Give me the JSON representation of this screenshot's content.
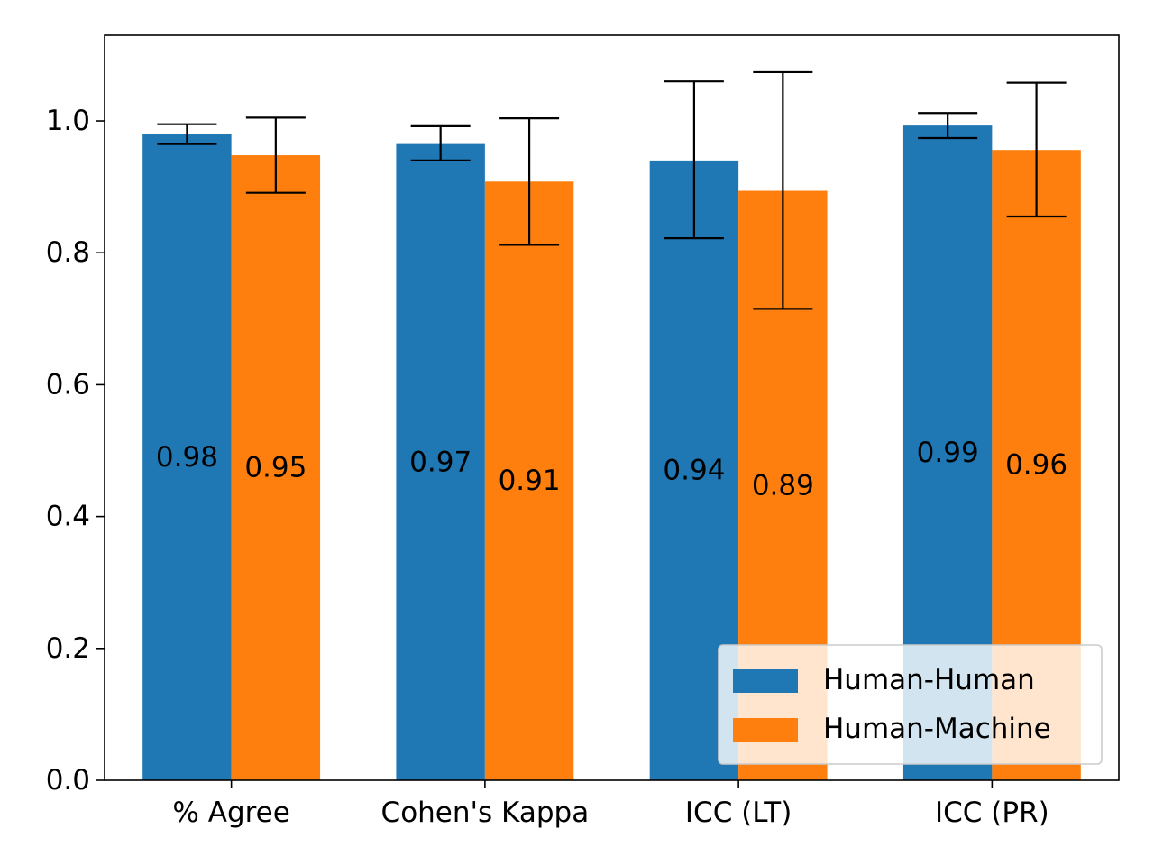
{
  "chart_data": {
    "type": "bar",
    "title": "",
    "xlabel": "",
    "ylabel": "",
    "categories": [
      "% Agree",
      "Cohen's Kappa",
      "ICC (LT)",
      "ICC (PR)"
    ],
    "ylim": [
      0,
      1.13
    ],
    "yticks": [
      0.0,
      0.2,
      0.4,
      0.6,
      0.8,
      1.0
    ],
    "ytick_labels": [
      "0.0",
      "0.2",
      "0.4",
      "0.6",
      "0.8",
      "1.0"
    ],
    "grid": false,
    "legend_position": "lower-right",
    "series": [
      {
        "name": "Human-Human",
        "color": "#1f77b4",
        "values": [
          0.98,
          0.965,
          0.94,
          0.993
        ],
        "error_low": [
          0.965,
          0.94,
          0.822,
          0.974
        ],
        "error_high": [
          0.995,
          0.992,
          1.06,
          1.012
        ],
        "labels": [
          "0.98",
          "0.97",
          "0.94",
          "0.99"
        ]
      },
      {
        "name": "Human-Machine",
        "color": "#ff7f0e",
        "values": [
          0.948,
          0.908,
          0.894,
          0.956
        ],
        "error_low": [
          0.891,
          0.812,
          0.715,
          0.855
        ],
        "error_high": [
          1.005,
          1.004,
          1.074,
          1.058
        ],
        "labels": [
          "0.95",
          "0.91",
          "0.89",
          "0.96"
        ]
      }
    ]
  }
}
